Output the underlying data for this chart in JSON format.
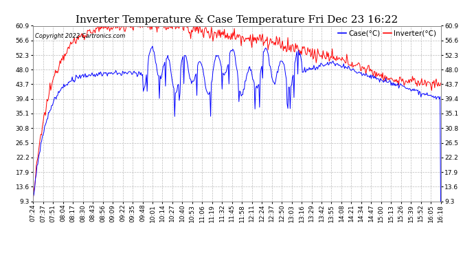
{
  "title": "Inverter Temperature & Case Temperature Fri Dec 23 16:22",
  "copyright": "Copyright 2022 Cartronics.com",
  "legend_case": "Case(°C)",
  "legend_inverter": "Inverter(°C)",
  "y_ticks": [
    9.3,
    13.6,
    17.9,
    22.2,
    26.5,
    30.8,
    35.1,
    39.4,
    43.7,
    48.0,
    52.3,
    56.6,
    60.9
  ],
  "ylim": [
    9.3,
    60.9
  ],
  "x_labels": [
    "07:24",
    "07:37",
    "07:51",
    "08:04",
    "08:17",
    "08:30",
    "08:43",
    "08:56",
    "09:09",
    "09:22",
    "09:35",
    "09:48",
    "10:01",
    "10:14",
    "10:27",
    "10:40",
    "10:53",
    "11:06",
    "11:19",
    "11:32",
    "11:45",
    "11:58",
    "12:11",
    "12:24",
    "12:37",
    "12:50",
    "13:03",
    "13:16",
    "13:29",
    "13:42",
    "13:55",
    "14:08",
    "14:21",
    "14:34",
    "14:47",
    "15:00",
    "15:13",
    "15:26",
    "15:39",
    "15:52",
    "16:05",
    "16:18"
  ],
  "inverter_color": "red",
  "case_color": "blue",
  "grid_color": "#bbbbbb",
  "bg_color": "#ffffff",
  "plot_bg_color": "#ffffff",
  "title_fontsize": 11,
  "axis_fontsize": 6.5
}
